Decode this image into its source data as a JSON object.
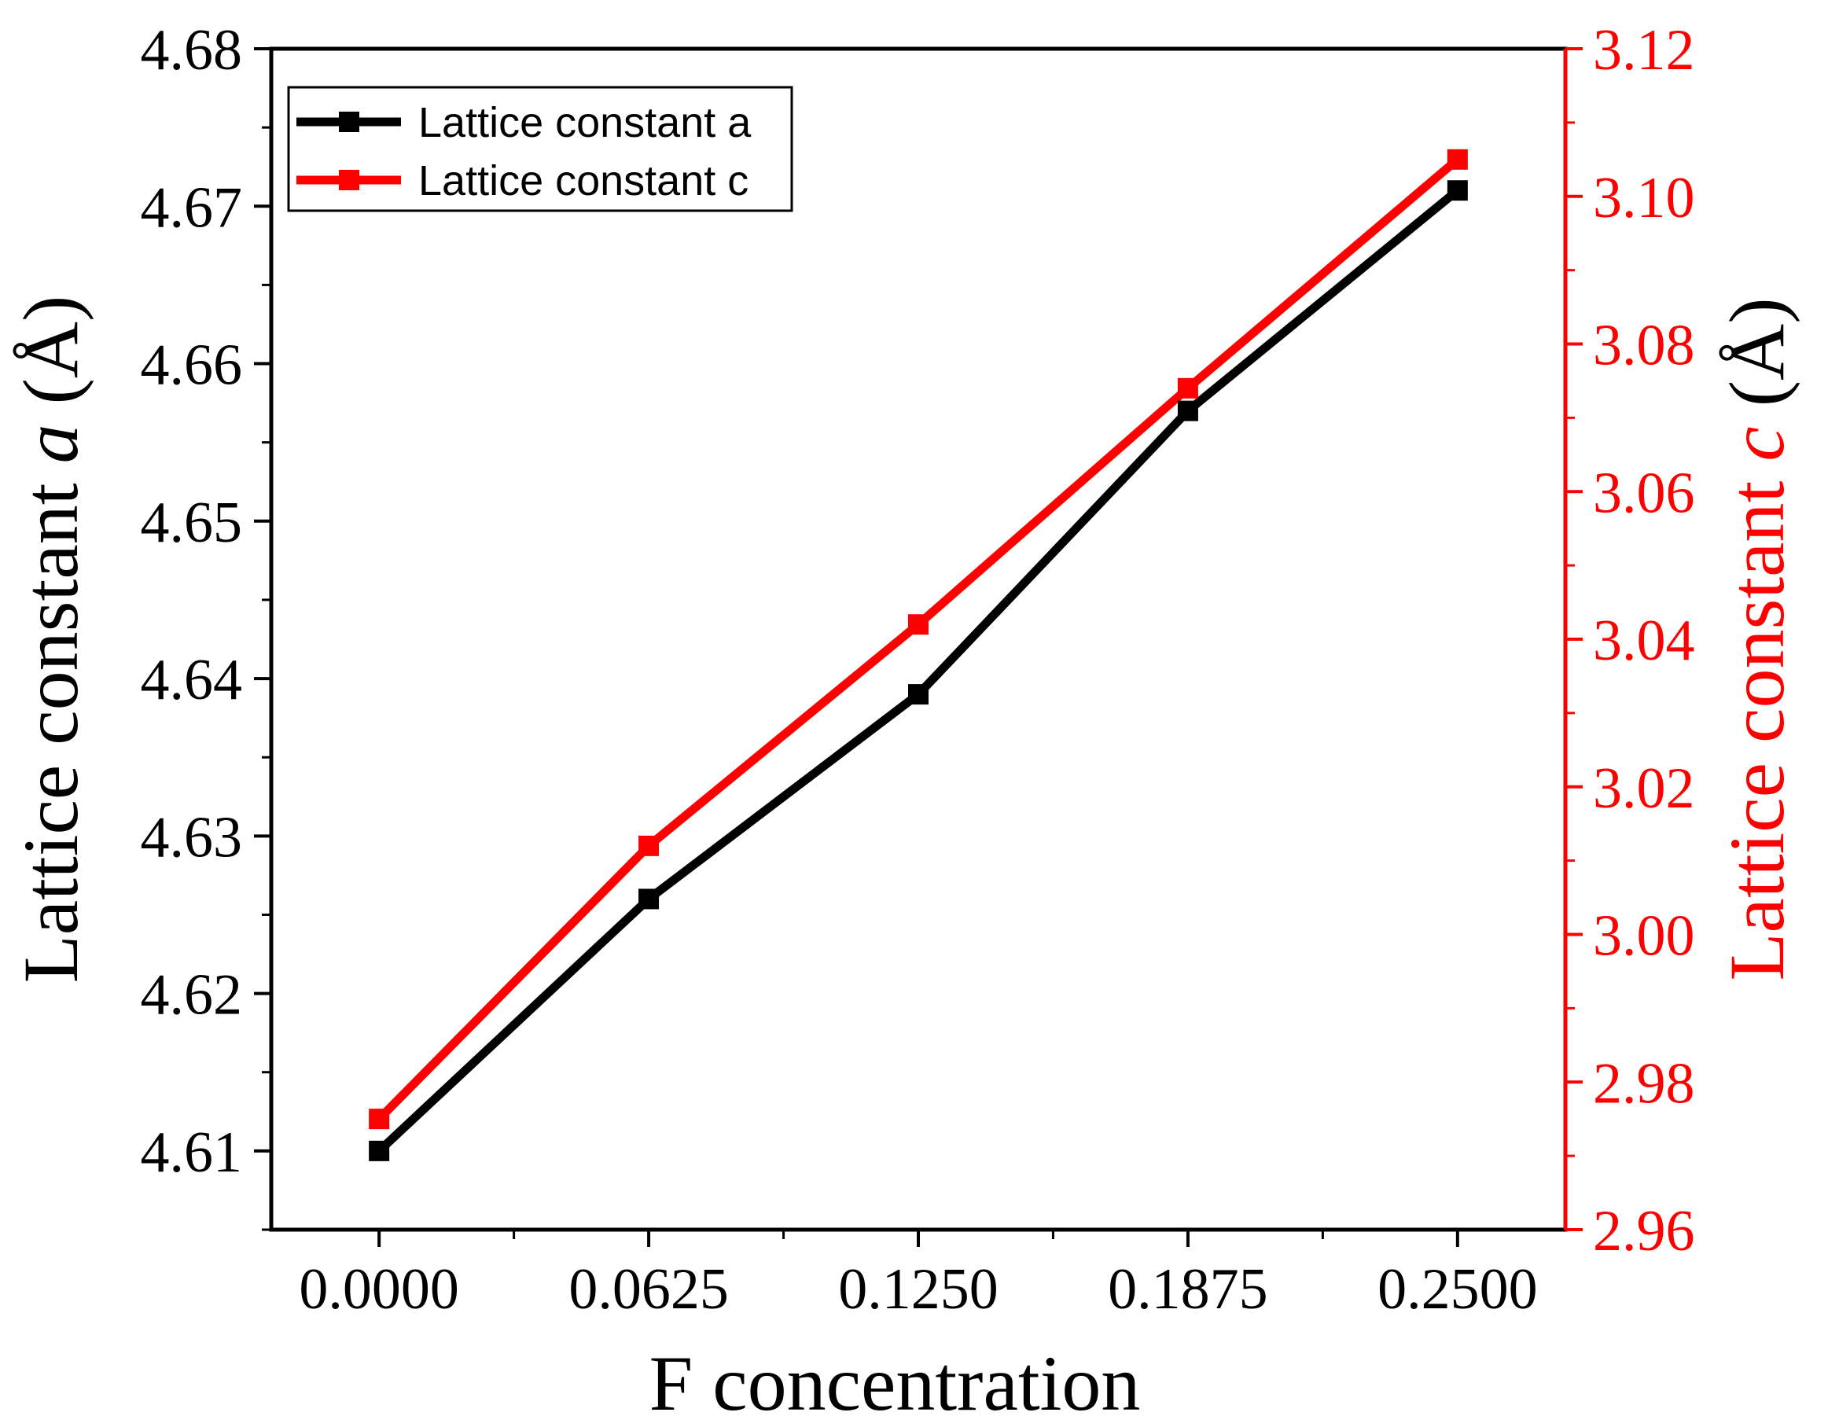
{
  "chart_data": {
    "type": "line",
    "xlabel": "F concentration",
    "x": [
      0.0,
      0.0625,
      0.125,
      0.1875,
      0.25
    ],
    "x_tick_labels": [
      "0.0000",
      "0.0625",
      "0.1250",
      "0.1875",
      "0.2500"
    ],
    "xlim": [
      -0.025,
      0.275
    ],
    "y_left": {
      "label_parts": [
        "Lattice constant ",
        "a",
        " (Å)"
      ],
      "lim": [
        4.605,
        4.68
      ],
      "ticks": [
        4.61,
        4.62,
        4.63,
        4.64,
        4.65,
        4.66,
        4.67,
        4.68
      ],
      "tick_labels": [
        "4.61",
        "4.62",
        "4.63",
        "4.64",
        "4.65",
        "4.66",
        "4.67",
        "4.68"
      ],
      "color": "#000000"
    },
    "y_right": {
      "label_parts": [
        "Lattice constant ",
        "c",
        " (Å)"
      ],
      "lim": [
        2.96,
        3.12
      ],
      "ticks": [
        2.96,
        2.98,
        3.0,
        3.02,
        3.04,
        3.06,
        3.08,
        3.1,
        3.12
      ],
      "tick_labels": [
        "2.96",
        "2.98",
        "3.00",
        "3.02",
        "3.04",
        "3.06",
        "3.08",
        "3.10",
        "3.12"
      ],
      "color": "#ff0000"
    },
    "series": [
      {
        "name": "Lattice constant a",
        "axis": "left",
        "color": "#000000",
        "values": [
          4.61,
          4.626,
          4.639,
          4.657,
          4.671
        ]
      },
      {
        "name": "Lattice constant c",
        "axis": "right",
        "color": "#ff0000",
        "values": [
          2.975,
          3.012,
          3.042,
          3.074,
          3.105
        ]
      }
    ],
    "legend_position": "top-left",
    "grid": false
  }
}
